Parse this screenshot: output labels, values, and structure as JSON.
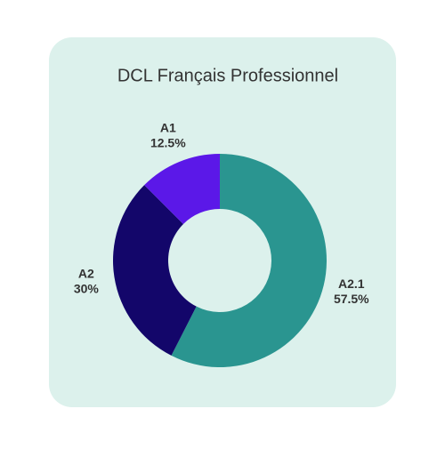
{
  "chart_data": {
    "type": "donut",
    "title": "DCL Français Professionnel",
    "categories": [
      "A2.1",
      "A2",
      "A1"
    ],
    "values": [
      57.5,
      30,
      12.5
    ],
    "value_labels": [
      "57.5%",
      "30%",
      "12.5%"
    ],
    "colors": [
      "#2a9590",
      "#13066a",
      "#5b18e8"
    ]
  }
}
